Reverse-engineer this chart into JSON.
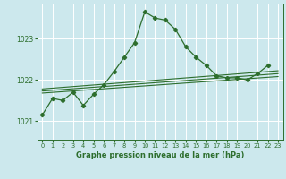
{
  "title": "Graphe pression niveau de la mer (hPa)",
  "bg_color": "#cce8ed",
  "grid_color": "#ffffff",
  "line_color": "#2d6e2d",
  "xlim": [
    -0.5,
    23.5
  ],
  "ylim": [
    1020.55,
    1023.85
  ],
  "yticks": [
    1021,
    1022,
    1023
  ],
  "xticks": [
    0,
    1,
    2,
    3,
    4,
    5,
    6,
    7,
    8,
    9,
    10,
    11,
    12,
    13,
    14,
    15,
    16,
    17,
    18,
    19,
    20,
    21,
    22,
    23
  ],
  "main_data": [
    [
      0,
      1021.15
    ],
    [
      1,
      1021.55
    ],
    [
      2,
      1021.5
    ],
    [
      3,
      1021.7
    ],
    [
      4,
      1021.38
    ],
    [
      5,
      1021.65
    ],
    [
      6,
      1021.88
    ],
    [
      7,
      1022.2
    ],
    [
      8,
      1022.55
    ],
    [
      9,
      1022.9
    ],
    [
      10,
      1023.65
    ],
    [
      11,
      1023.5
    ],
    [
      12,
      1023.45
    ],
    [
      13,
      1023.22
    ],
    [
      14,
      1022.8
    ],
    [
      15,
      1022.55
    ],
    [
      16,
      1022.35
    ],
    [
      17,
      1022.1
    ],
    [
      18,
      1022.05
    ],
    [
      19,
      1022.05
    ],
    [
      20,
      1022.0
    ],
    [
      21,
      1022.15
    ],
    [
      22,
      1022.35
    ]
  ],
  "linear1": [
    [
      0,
      1021.68
    ],
    [
      23,
      1022.08
    ]
  ],
  "linear2": [
    [
      0,
      1021.73
    ],
    [
      23,
      1022.15
    ]
  ],
  "linear3": [
    [
      0,
      1021.78
    ],
    [
      23,
      1022.22
    ]
  ]
}
